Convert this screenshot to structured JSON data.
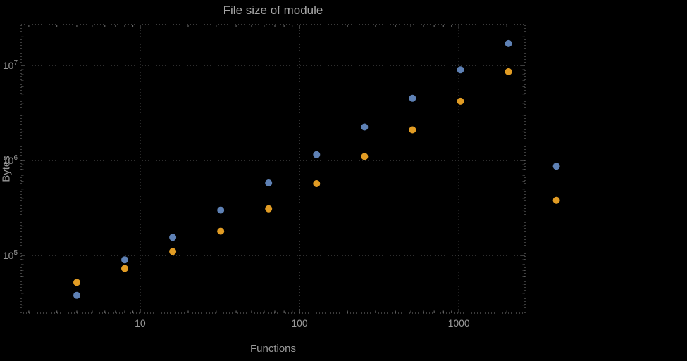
{
  "style": {
    "background": "#000000",
    "title_color": "#a6a6a6",
    "text_color": "#9a9a9a",
    "grid_color": "#5c5c5c",
    "frame_color": "#767676"
  },
  "chart_data": {
    "type": "scatter",
    "title": "File size of module",
    "xlabel": "Functions",
    "ylabel": "Bytes",
    "x_scale": "log",
    "y_scale": "log",
    "grid": true,
    "legend": "none",
    "x_range": [
      1.79,
      2600
    ],
    "y_range": [
      24700,
      26900000
    ],
    "x": [
      4,
      8,
      16,
      32,
      64,
      128,
      256,
      512,
      1024,
      2048,
      4096
    ],
    "series": [
      {
        "name": "blue",
        "color": "#5e81b5",
        "values": [
          38000,
          90000,
          155000,
          300000,
          580000,
          1150000,
          2250000,
          4500000,
          9000000,
          17000000,
          870000
        ]
      },
      {
        "name": "orange",
        "color": "#e19c24",
        "values": [
          52000,
          73000,
          110000,
          180000,
          310000,
          570000,
          1100000,
          2100000,
          4200000,
          8600000,
          380000
        ]
      }
    ],
    "x_ticks": {
      "values": [
        10,
        100,
        1000
      ],
      "labels": [
        "10",
        "100",
        "1000"
      ]
    },
    "y_ticks": {
      "base": 10,
      "exponents": [
        5,
        6,
        7
      ]
    }
  }
}
